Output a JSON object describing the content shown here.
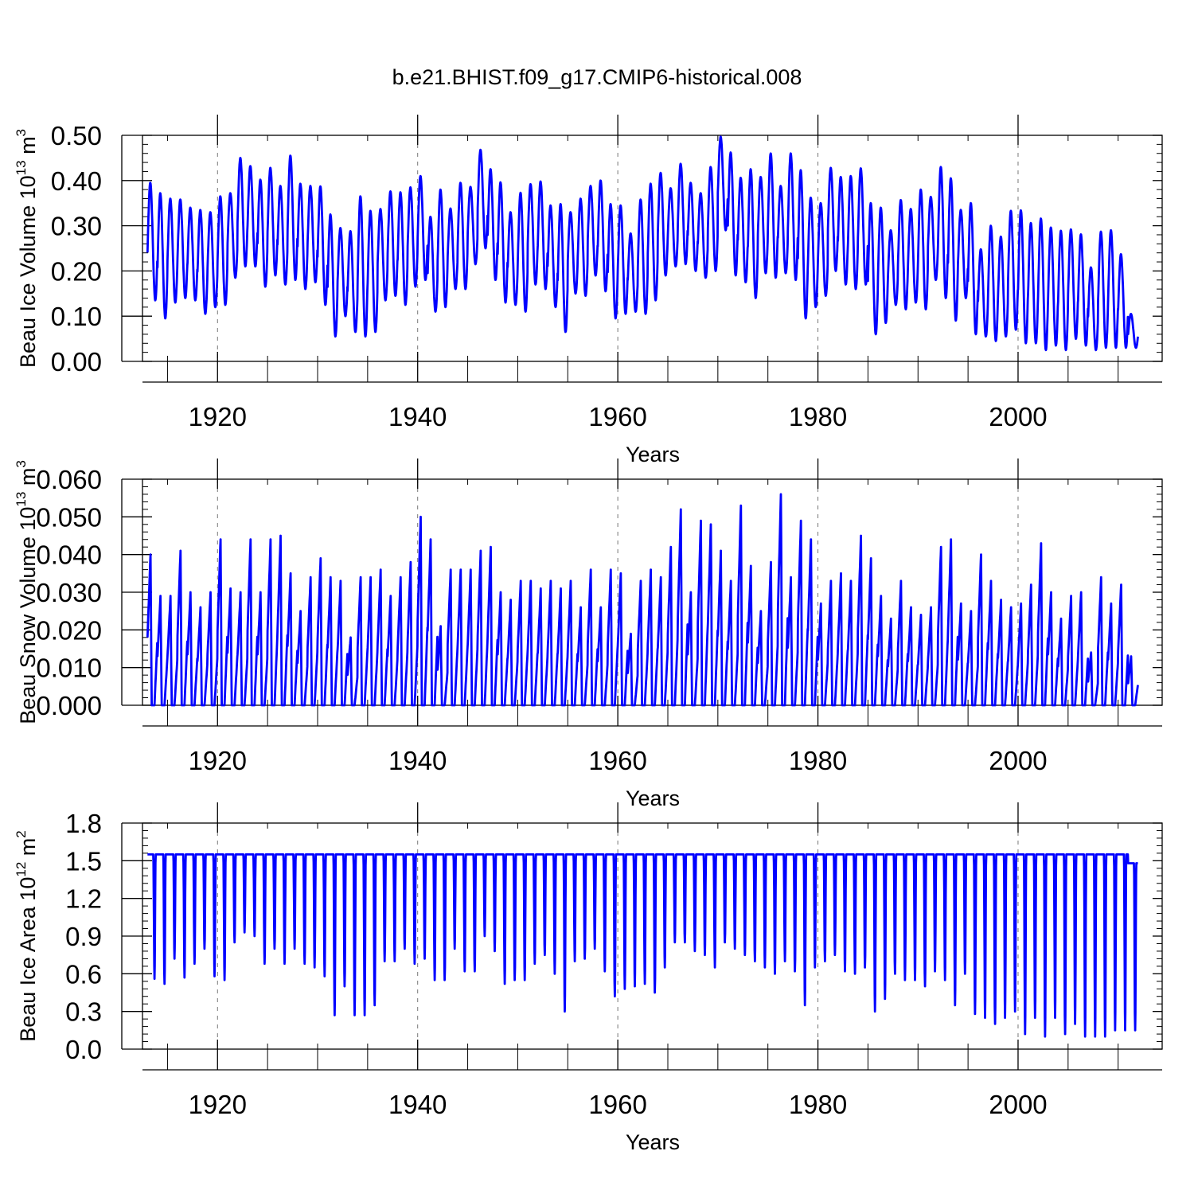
{
  "title": "b.e21.BHIST.f09_g17.CMIP6-historical.008",
  "line_color": "#0000ff",
  "chart_data": [
    {
      "type": "line",
      "id": "ice-volume",
      "ylabel": {
        "text": "Beau Ice Volume 10",
        "exp": "13",
        "unit": " m",
        "unit_exp": "3"
      },
      "xlabel": "Years",
      "xlim": [
        1912.5,
        2014.4
      ],
      "ylim": [
        0.0,
        0.5
      ],
      "yticks": [
        0.0,
        0.1,
        0.2,
        0.3,
        0.4,
        0.5
      ],
      "ytick_labels": [
        "0.00",
        "0.10",
        "0.20",
        "0.30",
        "0.40",
        "0.50"
      ],
      "xticks": [
        1920,
        1940,
        1960,
        1980,
        2000
      ],
      "xtick_labels": [
        "1920",
        "1940",
        "1960",
        "1980",
        "2000"
      ],
      "series": [
        {
          "name": "Beau Ice Volume",
          "start_year": 1913,
          "annual_max": [
            0.395,
            0.372,
            0.36,
            0.358,
            0.34,
            0.335,
            0.33,
            0.365,
            0.372,
            0.45,
            0.432,
            0.402,
            0.428,
            0.388,
            0.455,
            0.393,
            0.388,
            0.387,
            0.325,
            0.295,
            0.288,
            0.365,
            0.333,
            0.337,
            0.376,
            0.374,
            0.385,
            0.41,
            0.32,
            0.38,
            0.338,
            0.395,
            0.386,
            0.468,
            0.425,
            0.396,
            0.33,
            0.373,
            0.392,
            0.398,
            0.345,
            0.348,
            0.33,
            0.36,
            0.388,
            0.4,
            0.348,
            0.345,
            0.283,
            0.358,
            0.393,
            0.417,
            0.383,
            0.437,
            0.395,
            0.372,
            0.43,
            0.497,
            0.462,
            0.406,
            0.425,
            0.408,
            0.46,
            0.388,
            0.46,
            0.423,
            0.362,
            0.35,
            0.428,
            0.408,
            0.41,
            0.427,
            0.35,
            0.34,
            0.29,
            0.357,
            0.337,
            0.38,
            0.364,
            0.43,
            0.405,
            0.335,
            0.35,
            0.248,
            0.3,
            0.276,
            0.333,
            0.334,
            0.306,
            0.316,
            0.296,
            0.289,
            0.292,
            0.281,
            0.208,
            0.287,
            0.29,
            0.237,
            0.105
          ],
          "annual_min": [
            0.135,
            0.095,
            0.13,
            0.14,
            0.135,
            0.105,
            0.12,
            0.125,
            0.185,
            0.21,
            0.21,
            0.165,
            0.19,
            0.17,
            0.18,
            0.16,
            0.175,
            0.125,
            0.055,
            0.1,
            0.065,
            0.055,
            0.065,
            0.135,
            0.145,
            0.125,
            0.165,
            0.18,
            0.11,
            0.12,
            0.16,
            0.16,
            0.215,
            0.25,
            0.18,
            0.13,
            0.125,
            0.11,
            0.17,
            0.16,
            0.12,
            0.065,
            0.15,
            0.145,
            0.19,
            0.155,
            0.095,
            0.105,
            0.11,
            0.105,
            0.135,
            0.19,
            0.21,
            0.215,
            0.2,
            0.185,
            0.2,
            0.29,
            0.19,
            0.175,
            0.14,
            0.195,
            0.185,
            0.195,
            0.18,
            0.095,
            0.12,
            0.145,
            0.2,
            0.17,
            0.16,
            0.17,
            0.06,
            0.085,
            0.125,
            0.115,
            0.13,
            0.115,
            0.18,
            0.14,
            0.09,
            0.14,
            0.06,
            0.055,
            0.045,
            0.055,
            0.07,
            0.04,
            0.04,
            0.025,
            0.035,
            0.025,
            0.05,
            0.035,
            0.025,
            0.03,
            0.03,
            0.03
          ]
        }
      ]
    },
    {
      "type": "line",
      "id": "snow-volume",
      "ylabel": {
        "text": "Beau Snow Volume 10",
        "exp": "13",
        "unit": " m",
        "unit_exp": "3"
      },
      "xlabel": "Years",
      "xlim": [
        1912.5,
        2014.4
      ],
      "ylim": [
        0.0,
        0.06
      ],
      "yticks": [
        0.0,
        0.01,
        0.02,
        0.03,
        0.04,
        0.05,
        0.06
      ],
      "ytick_labels": [
        "0.000",
        "0.010",
        "0.020",
        "0.030",
        "0.040",
        "0.050",
        "0.060"
      ],
      "xticks": [
        1920,
        1940,
        1960,
        1980,
        2000
      ],
      "xtick_labels": [
        "1920",
        "1940",
        "1960",
        "1980",
        "2000"
      ],
      "series": [
        {
          "name": "Beau Snow Volume",
          "start_year": 1913,
          "annual_max": [
            0.04,
            0.029,
            0.029,
            0.041,
            0.03,
            0.026,
            0.03,
            0.044,
            0.031,
            0.03,
            0.044,
            0.03,
            0.044,
            0.045,
            0.035,
            0.025,
            0.034,
            0.039,
            0.034,
            0.033,
            0.018,
            0.034,
            0.034,
            0.036,
            0.029,
            0.034,
            0.038,
            0.05,
            0.044,
            0.021,
            0.036,
            0.036,
            0.036,
            0.041,
            0.042,
            0.03,
            0.028,
            0.033,
            0.033,
            0.031,
            0.033,
            0.031,
            0.033,
            0.026,
            0.036,
            0.026,
            0.036,
            0.035,
            0.019,
            0.033,
            0.036,
            0.034,
            0.042,
            0.052,
            0.03,
            0.049,
            0.048,
            0.041,
            0.033,
            0.053,
            0.037,
            0.025,
            0.038,
            0.056,
            0.034,
            0.049,
            0.044,
            0.027,
            0.033,
            0.035,
            0.033,
            0.045,
            0.039,
            0.029,
            0.023,
            0.033,
            0.026,
            0.024,
            0.026,
            0.042,
            0.044,
            0.027,
            0.025,
            0.04,
            0.033,
            0.028,
            0.026,
            0.027,
            0.032,
            0.043,
            0.03,
            0.023,
            0.029,
            0.03,
            0.014,
            0.034,
            0.027,
            0.032,
            0.013
          ],
          "annual_min": [
            0.0,
            0.0,
            0.0,
            0.0,
            0.0,
            0.0,
            0.0,
            0.0,
            0.0,
            0.0,
            0.0,
            0.0,
            0.0,
            0.0,
            0.0,
            0.0,
            0.0,
            0.0,
            0.0,
            0.0,
            0.0,
            0.0,
            0.0,
            0.0,
            0.0,
            0.0,
            0.0,
            0.0,
            0.0,
            0.0,
            0.0,
            0.0,
            0.0,
            0.0,
            0.0,
            0.0,
            0.0,
            0.0,
            0.0,
            0.0,
            0.0,
            0.0,
            0.0,
            0.0,
            0.0,
            0.0,
            0.0,
            0.0,
            0.0,
            0.0,
            0.0,
            0.0,
            0.0,
            0.0,
            0.0,
            0.0,
            0.0,
            0.0,
            0.0,
            0.0,
            0.0,
            0.0,
            0.0,
            0.0,
            0.0,
            0.0,
            0.0,
            0.0,
            0.0,
            0.0,
            0.0,
            0.0,
            0.0,
            0.0,
            0.0,
            0.0,
            0.0,
            0.0,
            0.0,
            0.0,
            0.0,
            0.0,
            0.0,
            0.0,
            0.0,
            0.0,
            0.0,
            0.0,
            0.0,
            0.0,
            0.0,
            0.0,
            0.0,
            0.0,
            0.0,
            0.0,
            0.0,
            0.0
          ]
        }
      ]
    },
    {
      "type": "line",
      "id": "ice-area",
      "ylabel": {
        "text": "Beau Ice Area 10",
        "exp": "12",
        "unit": " m",
        "unit_exp": "2"
      },
      "xlabel": "Years",
      "xlim": [
        1912.5,
        2014.4
      ],
      "ylim": [
        0.0,
        1.8
      ],
      "yticks": [
        0.0,
        0.3,
        0.6,
        0.9,
        1.2,
        1.5,
        1.8
      ],
      "ytick_labels": [
        "0.0",
        "0.3",
        "0.6",
        "0.9",
        "1.2",
        "1.5",
        "1.8"
      ],
      "xticks": [
        1920,
        1940,
        1960,
        1980,
        2000
      ],
      "xtick_labels": [
        "1920",
        "1940",
        "1960",
        "1980",
        "2000"
      ],
      "series": [
        {
          "name": "Beau Ice Area",
          "start_year": 1913,
          "annual_max": [
            1.55,
            1.55,
            1.55,
            1.55,
            1.55,
            1.55,
            1.55,
            1.55,
            1.55,
            1.55,
            1.55,
            1.55,
            1.55,
            1.55,
            1.55,
            1.55,
            1.55,
            1.55,
            1.55,
            1.55,
            1.55,
            1.55,
            1.55,
            1.55,
            1.55,
            1.55,
            1.55,
            1.55,
            1.55,
            1.55,
            1.55,
            1.55,
            1.55,
            1.55,
            1.55,
            1.55,
            1.55,
            1.55,
            1.55,
            1.55,
            1.55,
            1.55,
            1.55,
            1.55,
            1.55,
            1.55,
            1.55,
            1.55,
            1.55,
            1.55,
            1.55,
            1.55,
            1.55,
            1.55,
            1.55,
            1.55,
            1.55,
            1.55,
            1.55,
            1.55,
            1.55,
            1.55,
            1.55,
            1.55,
            1.55,
            1.55,
            1.55,
            1.55,
            1.55,
            1.55,
            1.55,
            1.55,
            1.55,
            1.55,
            1.55,
            1.55,
            1.55,
            1.55,
            1.55,
            1.55,
            1.55,
            1.55,
            1.55,
            1.55,
            1.55,
            1.55,
            1.55,
            1.55,
            1.55,
            1.55,
            1.55,
            1.55,
            1.55,
            1.55,
            1.55,
            1.55,
            1.55,
            1.55,
            1.48
          ],
          "annual_min": [
            0.56,
            0.52,
            0.72,
            0.57,
            0.68,
            0.8,
            0.58,
            0.55,
            0.85,
            0.93,
            0.9,
            0.68,
            0.8,
            0.68,
            0.8,
            0.68,
            0.65,
            0.58,
            0.27,
            0.5,
            0.27,
            0.27,
            0.35,
            0.7,
            0.7,
            0.8,
            0.68,
            0.72,
            0.55,
            0.55,
            0.8,
            0.62,
            0.62,
            0.9,
            0.78,
            0.52,
            0.55,
            0.55,
            0.68,
            0.75,
            0.6,
            0.3,
            0.7,
            0.72,
            0.8,
            0.62,
            0.42,
            0.48,
            0.5,
            0.52,
            0.45,
            0.65,
            0.85,
            0.85,
            0.78,
            0.75,
            0.65,
            0.85,
            0.8,
            0.75,
            0.7,
            0.65,
            0.6,
            0.7,
            0.62,
            0.35,
            0.65,
            0.7,
            0.75,
            0.62,
            0.6,
            0.65,
            0.3,
            0.4,
            0.6,
            0.55,
            0.55,
            0.5,
            0.62,
            0.55,
            0.35,
            0.6,
            0.28,
            0.25,
            0.2,
            0.25,
            0.3,
            0.12,
            0.25,
            0.1,
            0.25,
            0.12,
            0.2,
            0.1,
            0.1,
            0.1,
            0.15,
            0.15
          ]
        }
      ]
    }
  ]
}
